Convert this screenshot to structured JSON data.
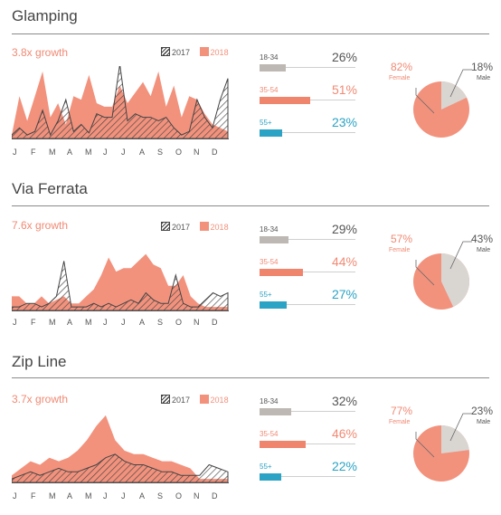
{
  "chart_data": [
    {
      "type": "area",
      "title": "Glamping",
      "subtitle": "3.8x growth",
      "legend": [
        "2017",
        "2018"
      ],
      "months": [
        "J",
        "F",
        "M",
        "A",
        "M",
        "J",
        "J",
        "A",
        "S",
        "O",
        "N",
        "D"
      ],
      "series": [
        {
          "name": "2017",
          "values": [
            0.05,
            0.15,
            0.05,
            0.1,
            0.4,
            0.05,
            0.25,
            0.55,
            0.1,
            0.2,
            0.08,
            0.35,
            0.3,
            0.3,
            1.05,
            0.25,
            0.35,
            0.3,
            0.3,
            0.25,
            0.3,
            0.15,
            0.05,
            0.1,
            0.55,
            0.3,
            0.15,
            0.55,
            0.85
          ]
        },
        {
          "name": "2018",
          "values": [
            0.05,
            0.6,
            0.25,
            0.6,
            0.95,
            0.3,
            0.5,
            0.2,
            0.6,
            0.55,
            0.9,
            0.5,
            0.45,
            0.45,
            0.75,
            0.5,
            0.65,
            0.8,
            0.6,
            0.95,
            0.45,
            0.75,
            0.3,
            0.6,
            0.55,
            0.35,
            0.2,
            0.15,
            0.1
          ]
        }
      ],
      "age_groups": [
        {
          "label": "18-34",
          "value": 26
        },
        {
          "label": "35-54",
          "value": 51
        },
        {
          "label": "55+",
          "value": 23
        }
      ],
      "gender": {
        "female": 82,
        "male": 18,
        "female_pct": "82%",
        "male_pct": "18%",
        "female_label": "Female",
        "male_label": "Male"
      },
      "pct_labels": [
        "26%",
        "51%",
        "23%"
      ]
    },
    {
      "type": "area",
      "title": "Via Ferrata",
      "subtitle": "7.6x growth",
      "legend": [
        "2017",
        "2018"
      ],
      "months": [
        "J",
        "F",
        "M",
        "A",
        "M",
        "J",
        "J",
        "A",
        "S",
        "O",
        "N",
        "D"
      ],
      "series": [
        {
          "name": "2017",
          "values": [
            0.05,
            0.05,
            0.1,
            0.1,
            0.05,
            0.1,
            0.2,
            0.7,
            0.05,
            0.05,
            0.05,
            0.1,
            0.05,
            0.1,
            0.05,
            0.1,
            0.15,
            0.1,
            0.25,
            0.15,
            0.1,
            0.1,
            0.5,
            0.1,
            0.05,
            0.05,
            0.15,
            0.25,
            0.2,
            0.25
          ]
        },
        {
          "name": "2018",
          "values": [
            0.2,
            0.2,
            0.1,
            0.1,
            0.2,
            0.1,
            0.15,
            0.2,
            0.1,
            0.1,
            0.2,
            0.3,
            0.5,
            0.75,
            0.55,
            0.6,
            0.6,
            0.7,
            0.8,
            0.65,
            0.6,
            0.35,
            0.35,
            0.5,
            0.2,
            0.1,
            0.05,
            0.05,
            0.05,
            0.05
          ]
        }
      ],
      "age_groups": [
        {
          "label": "18-34",
          "value": 29
        },
        {
          "label": "35-54",
          "value": 44
        },
        {
          "label": "55+",
          "value": 27
        }
      ],
      "gender": {
        "female": 57,
        "male": 43,
        "female_pct": "57%",
        "male_pct": "43%",
        "female_label": "Female",
        "male_label": "Male"
      },
      "pct_labels": [
        "29%",
        "44%",
        "27%"
      ]
    },
    {
      "type": "area",
      "title": "Zip Line",
      "subtitle": "3.7x growth",
      "legend": [
        "2017",
        "2018"
      ],
      "months": [
        "J",
        "F",
        "M",
        "A",
        "M",
        "J",
        "J",
        "A",
        "S",
        "O",
        "N",
        "D"
      ],
      "series": [
        {
          "name": "2017",
          "values": [
            0.05,
            0.1,
            0.15,
            0.1,
            0.15,
            0.2,
            0.15,
            0.15,
            0.2,
            0.25,
            0.35,
            0.4,
            0.3,
            0.25,
            0.25,
            0.2,
            0.15,
            0.15,
            0.1,
            0.1,
            0.1,
            0.25,
            0.2,
            0.15
          ]
        },
        {
          "name": "2018",
          "values": [
            0.1,
            0.2,
            0.3,
            0.25,
            0.35,
            0.3,
            0.35,
            0.45,
            0.6,
            0.8,
            0.95,
            0.6,
            0.45,
            0.4,
            0.4,
            0.35,
            0.3,
            0.3,
            0.25,
            0.2,
            0.05,
            0.05,
            0.05,
            0.05
          ]
        }
      ],
      "age_groups": [
        {
          "label": "18-34",
          "value": 32
        },
        {
          "label": "35-54",
          "value": 46
        },
        {
          "label": "55+",
          "value": 22
        }
      ],
      "gender": {
        "female": 77,
        "male": 23,
        "female_pct": "77%",
        "male_pct": "23%",
        "female_label": "Female",
        "male_label": "Male"
      },
      "pct_labels": [
        "32%",
        "46%",
        "22%"
      ]
    }
  ],
  "colors": {
    "salmon": "#f2927d",
    "hatch": "#444444",
    "age_18_34": "#bdb8b3",
    "age_35_54": "#f0856e",
    "age_55": "#2aa3c4",
    "male": "#d9d6d2"
  }
}
